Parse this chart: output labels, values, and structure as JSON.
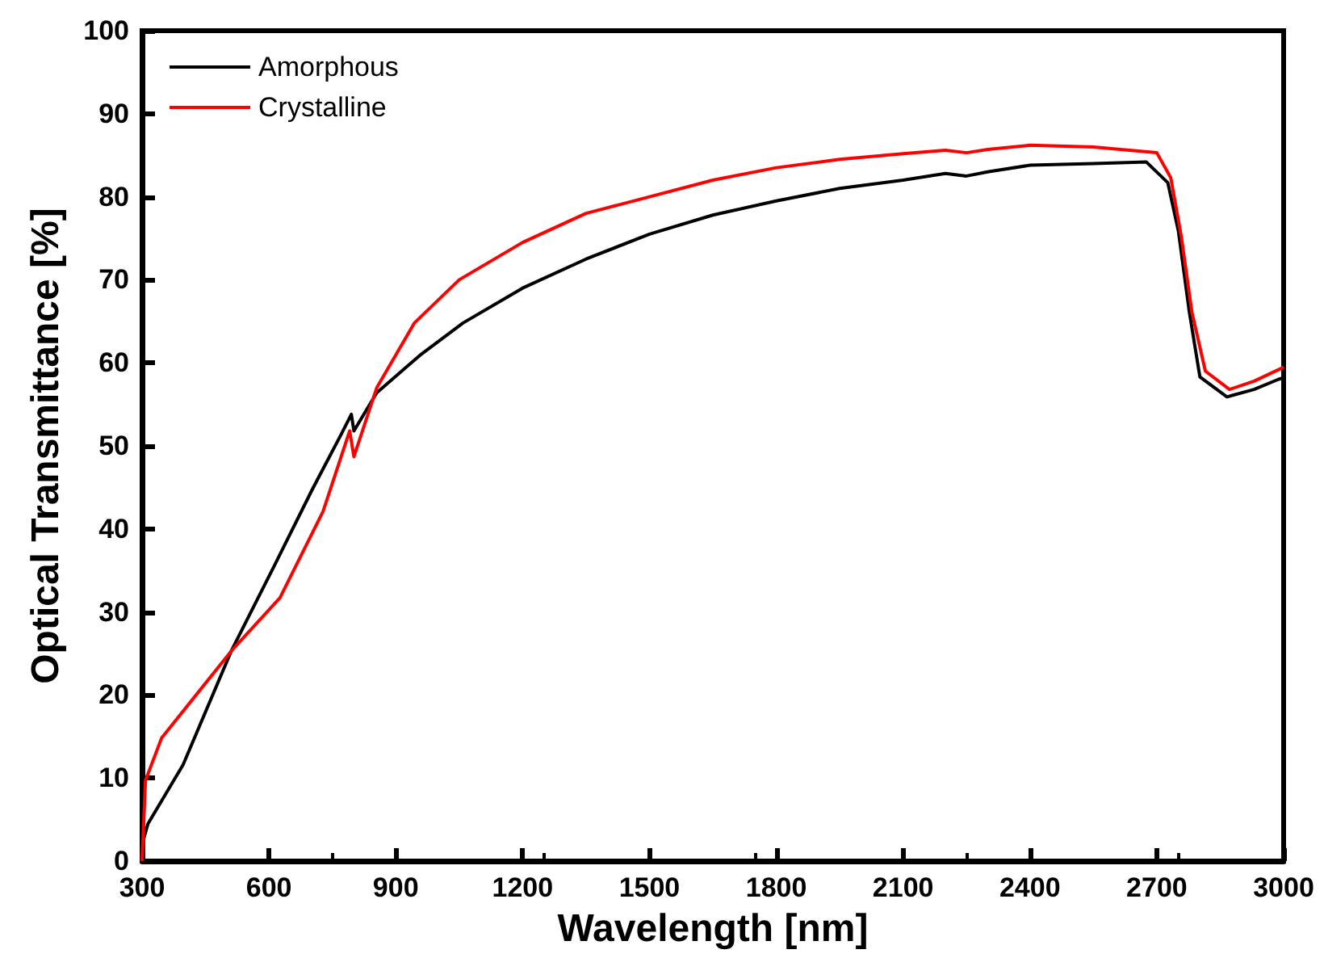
{
  "chart_data": {
    "type": "line",
    "xlabel": "Wavelength [nm]",
    "ylabel": "Optical Transmittance [%]",
    "xlim": [
      300,
      3000
    ],
    "ylim": [
      0,
      100
    ],
    "xticks": [
      300,
      600,
      900,
      1200,
      1500,
      1800,
      2100,
      2400,
      2700,
      3000
    ],
    "yticks": [
      0,
      10,
      20,
      30,
      40,
      50,
      60,
      70,
      80,
      90,
      100
    ],
    "grid": false,
    "legend": "top left",
    "marker": "none",
    "line_style": "solid",
    "series": [
      {
        "name": "Amorphous",
        "color": "#000000",
        "x": [
          300,
          314,
          397,
          511,
          613,
          702,
          772,
          795,
          801,
          855,
          957,
          1059,
          1200,
          1350,
          1500,
          1650,
          1800,
          1950,
          2100,
          2200,
          2250,
          2300,
          2400,
          2550,
          2675,
          2726,
          2751,
          2777,
          2802,
          2866,
          2930,
          2987,
          3000
        ],
        "values": [
          2,
          4.5,
          11.6,
          25.3,
          35.6,
          44.7,
          51.5,
          53.8,
          51.8,
          56.4,
          60.9,
          64.8,
          69,
          72.5,
          75.5,
          77.8,
          79.5,
          81,
          82,
          82.8,
          82.5,
          83,
          83.8,
          84,
          84.2,
          81.7,
          75.9,
          66.1,
          58.3,
          55.9,
          56.8,
          58,
          58.2
        ]
      },
      {
        "name": "Crystalline",
        "color": "#ff0000",
        "x": [
          300,
          308,
          346,
          511,
          626,
          728,
          791,
          801,
          855,
          944,
          1050,
          1200,
          1350,
          1500,
          1650,
          1800,
          1950,
          2100,
          2200,
          2250,
          2300,
          2400,
          2550,
          2700,
          2733,
          2758,
          2783,
          2815,
          2872,
          2930,
          2993,
          3000
        ],
        "values": [
          0,
          9.7,
          14.8,
          25.3,
          31.7,
          42.1,
          51.8,
          48.7,
          57,
          64.8,
          70,
          74.5,
          78,
          80,
          82,
          83.5,
          84.5,
          85.2,
          85.6,
          85.3,
          85.7,
          86.2,
          86,
          85.3,
          82.3,
          75.2,
          66.1,
          59,
          56.8,
          57.8,
          59.3,
          59.5
        ]
      }
    ]
  }
}
